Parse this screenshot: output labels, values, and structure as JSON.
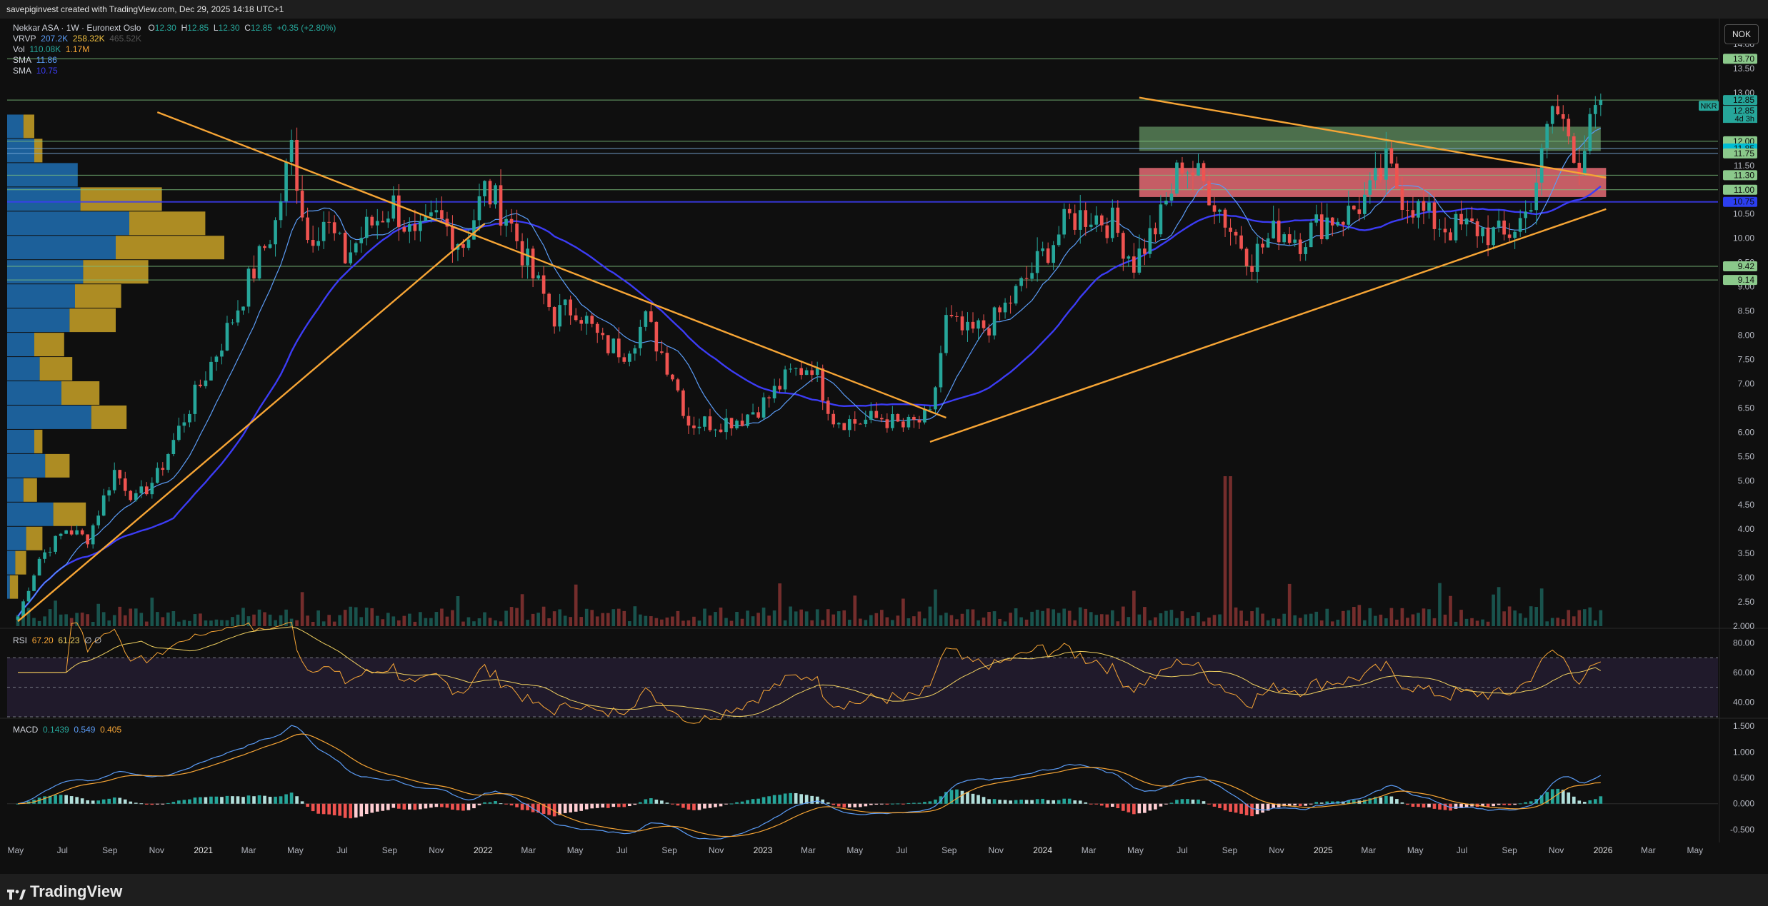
{
  "topbar": {
    "text": "savepiginvest created with TradingView.com, Dec 29, 2025 14:18 UTC+1"
  },
  "brand": {
    "name": "TradingView"
  },
  "currency_button": "NOK",
  "legend": {
    "symbol": "Nekkar ASA · 1W · Euronext Oslo",
    "o_label": "O",
    "o_value": "12.30",
    "h_label": "H",
    "h_value": "12.85",
    "l_label": "L",
    "l_value": "12.30",
    "c_label": "C",
    "c_value": "12.85",
    "change": "+0.35 (+2.80%)",
    "vrvp_label": "VRVP",
    "vrvp_v1": "207.2K",
    "vrvp_v2": "258.32K",
    "vrvp_v3": "465.52K",
    "vol_label": "Vol",
    "vol_v1": "110.08K",
    "vol_v2": "1.17M",
    "sma1_label": "SMA",
    "sma1_value": "11.86",
    "sma2_label": "SMA",
    "sma2_value": "10.75",
    "rsi_label": "RSI",
    "rsi_v1": "67.20",
    "rsi_v2": "61.23",
    "rsi_v3": "∅ ∅",
    "macd_label": "MACD",
    "macd_v1": "0.1439",
    "macd_v2": "0.549",
    "macd_v3": "0.405"
  },
  "colors": {
    "up": "#26a69a",
    "down": "#ef5350",
    "sma_fast": "#5b9cf6",
    "sma_slow": "#3c3cf5",
    "trend": "#f7a535",
    "hline": "#7ec27e",
    "vp_up": "#1e6fb3",
    "vp_down": "#c9a227"
  },
  "chart_data": [
    {
      "type": "candlestick",
      "title": "",
      "symbol": "NKR",
      "interval": "1W",
      "x_ticks": [
        "May",
        "Jul",
        "Sep",
        "Nov",
        "2021",
        "Mar",
        "May",
        "Jul",
        "Sep",
        "Nov",
        "2022",
        "Mar",
        "May",
        "Jul",
        "Sep",
        "Nov",
        "2023",
        "Mar",
        "May",
        "Jul",
        "Sep",
        "Nov",
        "2024",
        "Mar",
        "May",
        "Jul",
        "Sep",
        "Nov",
        "2025",
        "Mar",
        "May",
        "Jul",
        "Sep",
        "Nov",
        "2026",
        "Mar",
        "May"
      ],
      "y_ticks": [
        "14.00",
        "13.50",
        "13.00",
        "12.50",
        "12.00",
        "11.50",
        "11.00",
        "10.50",
        "10.00",
        "9.50",
        "9.00",
        "8.50",
        "8.00",
        "7.50",
        "7.00",
        "6.50",
        "6.00",
        "5.50",
        "5.00",
        "4.50",
        "4.00",
        "3.50",
        "3.00",
        "2.50",
        "2.000"
      ],
      "ylim": [
        2.0,
        14.0
      ],
      "anchors": [
        [
          "2020-05-04",
          2.2
        ],
        [
          "2020-06-01",
          3.4
        ],
        [
          "2020-07-06",
          4.0
        ],
        [
          "2020-08-03",
          3.8
        ],
        [
          "2020-09-07",
          5.2
        ],
        [
          "2020-10-05",
          4.6
        ],
        [
          "2020-11-02",
          5.1
        ],
        [
          "2020-12-07",
          6.3
        ],
        [
          "2021-01-04",
          7.2
        ],
        [
          "2021-02-01",
          8.1
        ],
        [
          "2021-03-01",
          9.1
        ],
        [
          "2021-04-05",
          10.3
        ],
        [
          "2021-04-26",
          11.9
        ],
        [
          "2021-05-17",
          10.0
        ],
        [
          "2021-06-07",
          10.4
        ],
        [
          "2021-07-05",
          9.6
        ],
        [
          "2021-08-02",
          10.2
        ],
        [
          "2021-09-06",
          10.7
        ],
        [
          "2021-10-04",
          9.9
        ],
        [
          "2021-11-01",
          10.4
        ],
        [
          "2021-12-06",
          9.9
        ],
        [
          "2022-01-03",
          11.0
        ],
        [
          "2022-01-31",
          10.5
        ],
        [
          "2022-03-07",
          9.2
        ],
        [
          "2022-04-04",
          8.4
        ],
        [
          "2022-05-02",
          8.6
        ],
        [
          "2022-06-06",
          7.8
        ],
        [
          "2022-07-04",
          7.7
        ],
        [
          "2022-08-01",
          8.3
        ],
        [
          "2022-09-05",
          7.2
        ],
        [
          "2022-09-26",
          6.2
        ],
        [
          "2022-10-31",
          6.2
        ],
        [
          "2022-12-05",
          6.3
        ],
        [
          "2023-01-02",
          6.6
        ],
        [
          "2023-02-06",
          7.2
        ],
        [
          "2023-03-06",
          7.4
        ],
        [
          "2023-04-03",
          6.3
        ],
        [
          "2023-05-01",
          6.2
        ],
        [
          "2023-06-05",
          6.3
        ],
        [
          "2023-07-03",
          6.1
        ],
        [
          "2023-08-07",
          6.3
        ],
        [
          "2023-08-28",
          8.3
        ],
        [
          "2023-09-25",
          8.0
        ],
        [
          "2023-10-30",
          8.3
        ],
        [
          "2023-12-04",
          9.0
        ],
        [
          "2024-01-08",
          9.8
        ],
        [
          "2024-02-05",
          10.4
        ],
        [
          "2024-03-04",
          10.5
        ],
        [
          "2024-04-01",
          10.3
        ],
        [
          "2024-04-29",
          9.5
        ],
        [
          "2024-06-03",
          10.4
        ],
        [
          "2024-07-01",
          11.6
        ],
        [
          "2024-08-05",
          11.0
        ],
        [
          "2024-09-02",
          10.2
        ],
        [
          "2024-09-30",
          9.6
        ],
        [
          "2024-11-04",
          10.2
        ],
        [
          "2024-12-02",
          10.0
        ],
        [
          "2025-01-06",
          10.4
        ],
        [
          "2025-02-03",
          10.5
        ],
        [
          "2025-03-03",
          10.9
        ],
        [
          "2025-03-24",
          11.5
        ],
        [
          "2025-04-14",
          10.9
        ],
        [
          "2025-05-19",
          10.4
        ],
        [
          "2025-06-16",
          10.2
        ],
        [
          "2025-07-21",
          10.2
        ],
        [
          "2025-08-25",
          10.0
        ],
        [
          "2025-09-22",
          10.5
        ],
        [
          "2025-10-13",
          11.6
        ],
        [
          "2025-10-27",
          12.7
        ],
        [
          "2025-11-17",
          12.2
        ],
        [
          "2025-12-01",
          11.6
        ],
        [
          "2025-12-15",
          12.2
        ],
        [
          "2025-12-29",
          12.85
        ]
      ],
      "last_bar": {
        "date": "2025-12-29",
        "open": 12.3,
        "high": 12.85,
        "low": 12.3,
        "close": 12.85
      },
      "sma_fast_value": 11.86,
      "sma_slow_value": 10.75,
      "horizontal_levels": [
        13.7,
        12.85,
        12.0,
        11.85,
        11.75,
        11.3,
        11.0,
        10.75,
        9.42,
        9.14
      ],
      "level_labels": [
        "13.70",
        "12.85",
        "12.00",
        "11.85",
        "11.75",
        "11.30",
        "11.00",
        "10.75",
        "9.42",
        "9.14"
      ],
      "price_tag": {
        "symbol": "NKR",
        "value": "12.85",
        "countdown": "4d 3h"
      },
      "zones": [
        {
          "from": 11.8,
          "to": 12.3,
          "x_from": "2024-05-06",
          "x_to": "2025-12-29",
          "color": "#7fbf7f",
          "opacity": 0.55
        },
        {
          "from": 10.85,
          "to": 11.45,
          "x_from": "2024-05-06",
          "x_to": "2026-01-05",
          "color": "#f2707a",
          "opacity": 0.8
        }
      ],
      "trendlines": [
        {
          "from": [
            "2020-05-04",
            2.1
          ],
          "to": [
            "2022-01-03",
            10.3
          ]
        },
        {
          "from": [
            "2020-11-02",
            12.6
          ],
          "to": [
            "2023-08-28",
            6.3
          ]
        },
        {
          "from": [
            "2023-08-07",
            5.8
          ],
          "to": [
            "2026-01-05",
            10.6
          ]
        },
        {
          "from": [
            "2024-05-06",
            12.9
          ],
          "to": [
            "2026-01-05",
            11.25
          ]
        }
      ],
      "volume": {
        "max_value": "1.17M",
        "spike_date": "2024-09-02"
      },
      "volume_profile_bins": [
        {
          "price": 12.3,
          "up": 0.06,
          "down": 0.04
        },
        {
          "price": 11.8,
          "up": 0.1,
          "down": 0.03
        },
        {
          "price": 11.3,
          "up": 0.26,
          "down": 0.0
        },
        {
          "price": 10.8,
          "up": 0.27,
          "down": 0.3
        },
        {
          "price": 10.3,
          "up": 0.45,
          "down": 0.28
        },
        {
          "price": 9.8,
          "up": 0.4,
          "down": 0.4
        },
        {
          "price": 9.3,
          "up": 0.28,
          "down": 0.24
        },
        {
          "price": 8.8,
          "up": 0.25,
          "down": 0.17
        },
        {
          "price": 8.3,
          "up": 0.23,
          "down": 0.17
        },
        {
          "price": 7.8,
          "up": 0.1,
          "down": 0.11
        },
        {
          "price": 7.3,
          "up": 0.12,
          "down": 0.12
        },
        {
          "price": 6.8,
          "up": 0.2,
          "down": 0.14
        },
        {
          "price": 6.3,
          "up": 0.31,
          "down": 0.13
        },
        {
          "price": 5.8,
          "up": 0.1,
          "down": 0.03
        },
        {
          "price": 5.3,
          "up": 0.14,
          "down": 0.09
        },
        {
          "price": 4.8,
          "up": 0.06,
          "down": 0.05
        },
        {
          "price": 4.3,
          "up": 0.17,
          "down": 0.12
        },
        {
          "price": 3.8,
          "up": 0.07,
          "down": 0.06
        },
        {
          "price": 3.3,
          "up": 0.03,
          "down": 0.04
        },
        {
          "price": 2.8,
          "up": 0.01,
          "down": 0.03
        }
      ]
    },
    {
      "type": "line",
      "title": "RSI",
      "ylim": [
        30,
        88
      ],
      "y_ticks": [
        "80.00",
        "60.00",
        "40.00"
      ],
      "overbought": 70,
      "oversold": 30,
      "mid": 50,
      "current": [
        67.2,
        61.23
      ]
    },
    {
      "type": "bar",
      "title": "MACD",
      "ylim": [
        -0.75,
        1.6
      ],
      "y_ticks": [
        "1.500",
        "1.000",
        "0.500",
        "0.000",
        "-0.500"
      ],
      "current": [
        0.1439,
        0.549,
        0.405
      ]
    }
  ]
}
